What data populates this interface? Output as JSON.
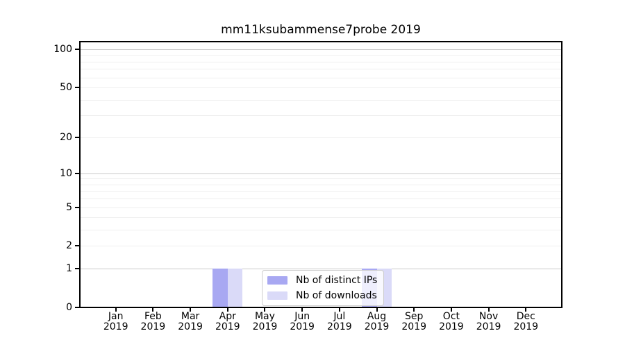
{
  "figure": {
    "background": "#ffffff"
  },
  "chart_data": {
    "type": "bar",
    "title": "mm11ksubammense7probe 2019",
    "categories": [
      "Jan",
      "Feb",
      "Mar",
      "Apr",
      "May",
      "Jun",
      "Jul",
      "Aug",
      "Sep",
      "Oct",
      "Nov",
      "Dec"
    ],
    "x_year_label": "2019",
    "series": [
      {
        "name": "Nb of distinct IPs",
        "color": "#a8a8f2",
        "values": [
          0,
          0,
          0,
          1,
          0,
          0,
          0,
          1,
          0,
          0,
          0,
          0
        ]
      },
      {
        "name": "Nb of downloads",
        "color": "#dadaf8",
        "values": [
          0,
          0,
          0,
          1,
          0,
          0,
          0,
          1,
          0,
          0,
          0,
          0
        ]
      }
    ],
    "y_axis": {
      "scale": "log1p",
      "tick_values": [
        0,
        1,
        2,
        5,
        10,
        20,
        50,
        100
      ],
      "tick_labels": [
        "0",
        "1",
        "2",
        "5",
        "10",
        "20",
        "50",
        "100"
      ],
      "major_gridlines": [
        1,
        10,
        100
      ],
      "minor_gridlines": [
        2,
        3,
        4,
        5,
        6,
        7,
        8,
        9,
        20,
        30,
        40,
        50,
        60,
        70,
        80,
        90
      ],
      "ylim": [
        0,
        117
      ]
    },
    "legend": {
      "position": "lower center"
    },
    "grid": true
  },
  "colors": {
    "spine": "#000000",
    "grid_major": "#c8c8c8",
    "grid_minor": "#efefef",
    "legend_border": "#cccccc",
    "legend_background": "rgba(255,255,255,0.8)",
    "text": "#000000"
  }
}
